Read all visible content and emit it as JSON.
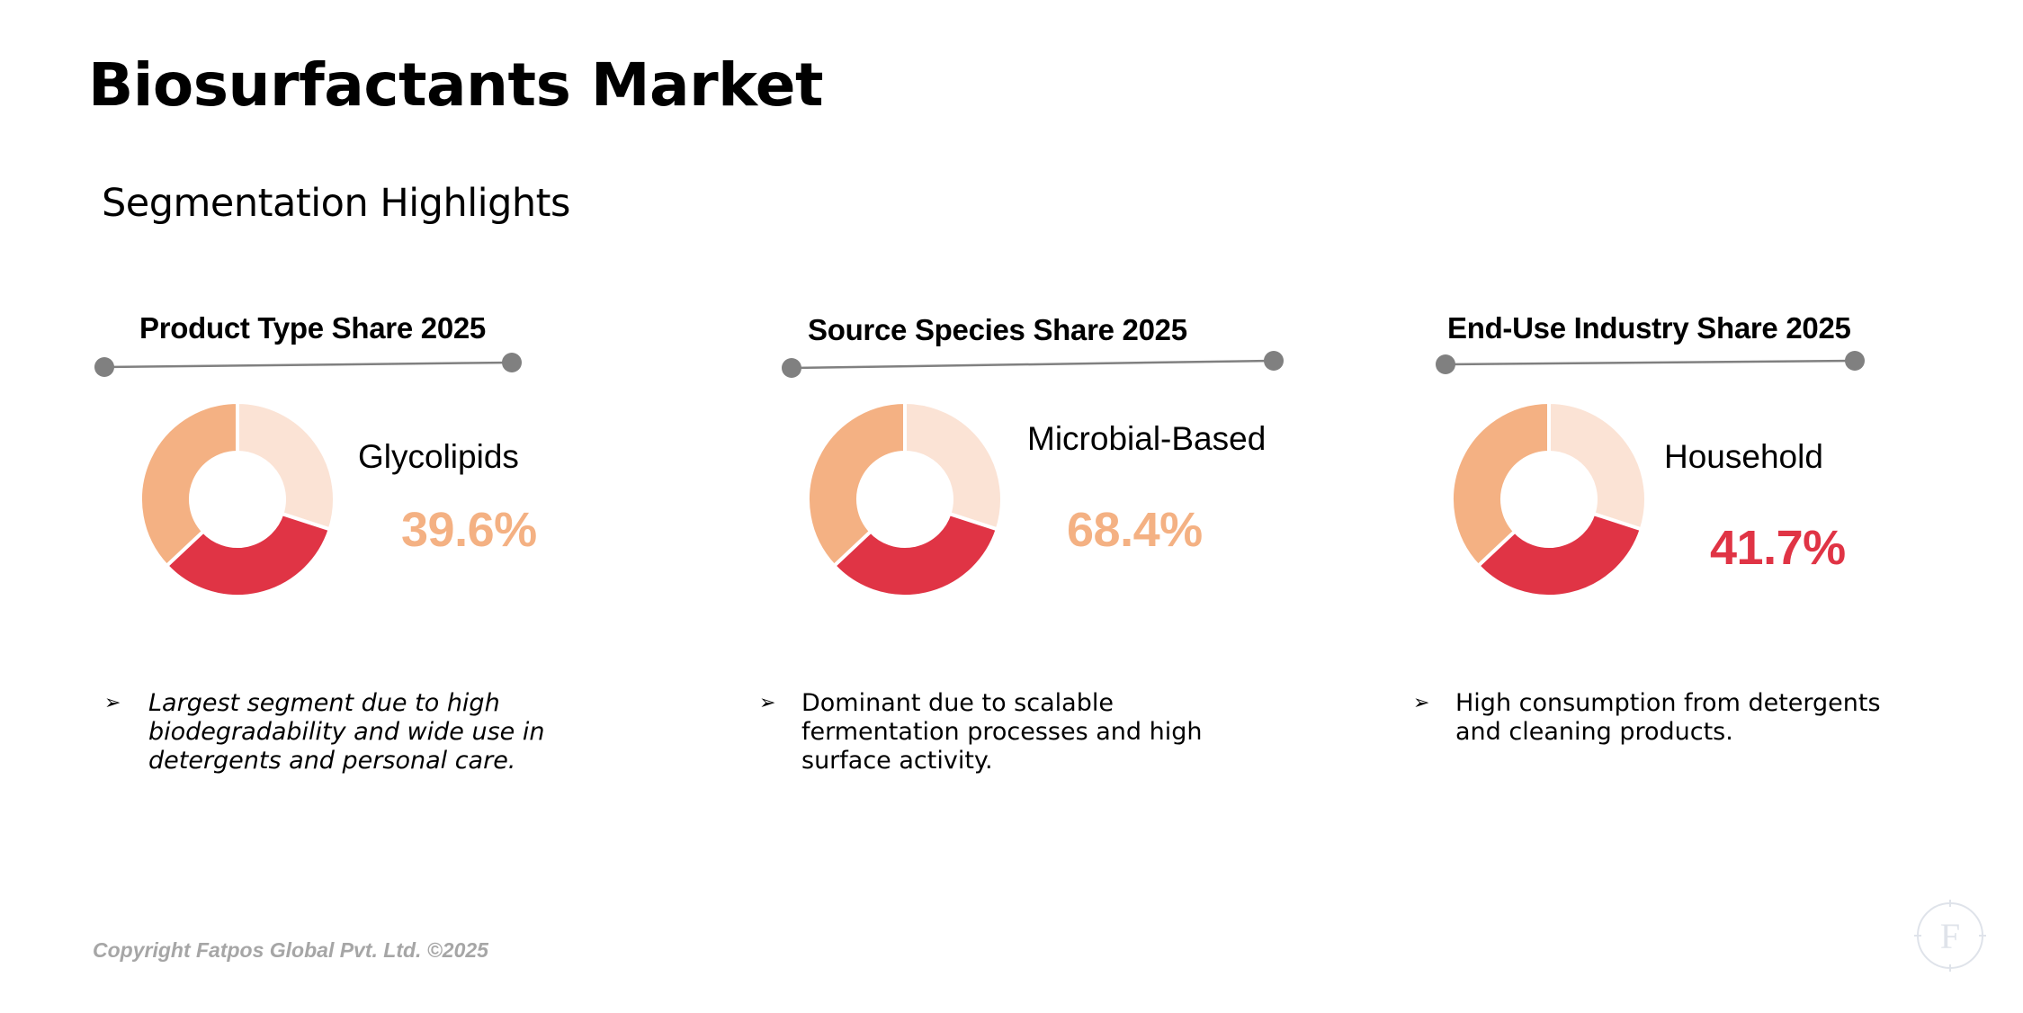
{
  "title": "Biosurfactants Market",
  "subtitle": "Segmentation Highlights",
  "colors": {
    "light_segment": "#fbe3d5",
    "peach_segment": "#f4b183",
    "red_segment": "#e03445",
    "connector": "#808080"
  },
  "panels": [
    {
      "title": "Product Type Share 2025",
      "label": "Glycolipids",
      "value": "39.6%",
      "value_color": "#f4b183",
      "bullet": "Largest segment due to high biodegradability and wide use in detergents and personal care.",
      "bullet_italic": true
    },
    {
      "title": "Source Species Share 2025",
      "label": "Microbial-Based",
      "value": "68.4%",
      "value_color": "#f4b183",
      "bullet": "Dominant due to scalable fermentation processes and high surface activity.",
      "bullet_italic": false
    },
    {
      "title": "End-Use Industry Share 2025",
      "label": "Household",
      "value": "41.7%",
      "value_color": "#e03445",
      "bullet": "High consumption from detergents and cleaning products.",
      "bullet_italic": false
    }
  ],
  "chart_data": [
    {
      "type": "pie",
      "title": "Product Type Share 2025",
      "segments": [
        {
          "color": "#fbe3d5",
          "share": 0.3
        },
        {
          "color": "#e03445",
          "share": 0.33
        },
        {
          "color": "#f4b183",
          "share": 0.37
        }
      ],
      "highlight": {
        "label": "Glycolipids",
        "value": 39.6
      }
    },
    {
      "type": "pie",
      "title": "Source Species Share 2025",
      "segments": [
        {
          "color": "#fbe3d5",
          "share": 0.3
        },
        {
          "color": "#e03445",
          "share": 0.33
        },
        {
          "color": "#f4b183",
          "share": 0.37
        }
      ],
      "highlight": {
        "label": "Microbial-Based",
        "value": 68.4
      }
    },
    {
      "type": "pie",
      "title": "End-Use Industry Share 2025",
      "segments": [
        {
          "color": "#fbe3d5",
          "share": 0.3
        },
        {
          "color": "#e03445",
          "share": 0.33
        },
        {
          "color": "#f4b183",
          "share": 0.37
        }
      ],
      "highlight": {
        "label": "Household",
        "value": 41.7
      }
    }
  ],
  "bullet_icon": "arrowhead-bullet-icon",
  "copyright": "Copyright Fatpos Global Pvt. Ltd. ©2025",
  "logo_letter": "F"
}
